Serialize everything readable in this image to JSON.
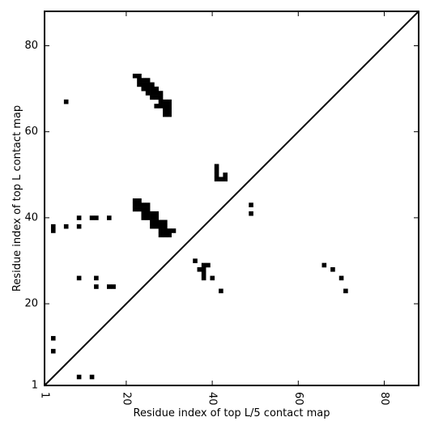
{
  "chart_data": {
    "type": "heatmap",
    "title": "",
    "xlabel": "Residue index of top L/5 contact map",
    "ylabel": "Residue index of top L contact map",
    "xlim": [
      1,
      88
    ],
    "ylim": [
      1,
      88
    ],
    "x_ticks": [
      1,
      20,
      40,
      60,
      80
    ],
    "y_ticks": [
      1,
      20,
      40,
      60,
      80
    ],
    "x_tick_labels": [
      "1",
      "20",
      "40",
      "60",
      "80"
    ],
    "y_tick_labels": [
      "1",
      "20",
      "40",
      "60",
      "80"
    ],
    "x_tick_rotation_deg": -90,
    "grid": false,
    "diagonal_line": true,
    "colors": {
      "contact": "#000000",
      "background": "#ffffff"
    },
    "points": [
      [
        22,
        73
      ],
      [
        23,
        73
      ],
      [
        23,
        72
      ],
      [
        24,
        72
      ],
      [
        25,
        72
      ],
      [
        23,
        71
      ],
      [
        24,
        71
      ],
      [
        25,
        71
      ],
      [
        26,
        71
      ],
      [
        24,
        70
      ],
      [
        25,
        70
      ],
      [
        26,
        70
      ],
      [
        27,
        70
      ],
      [
        25,
        69
      ],
      [
        26,
        69
      ],
      [
        27,
        69
      ],
      [
        28,
        69
      ],
      [
        26,
        68
      ],
      [
        27,
        68
      ],
      [
        28,
        68
      ],
      [
        28,
        67
      ],
      [
        29,
        67
      ],
      [
        30,
        67
      ],
      [
        27,
        66
      ],
      [
        28,
        66
      ],
      [
        29,
        66
      ],
      [
        30,
        66
      ],
      [
        29,
        65
      ],
      [
        30,
        65
      ],
      [
        29,
        64
      ],
      [
        30,
        64
      ],
      [
        6,
        67
      ],
      [
        41,
        52
      ],
      [
        41,
        51
      ],
      [
        41,
        50
      ],
      [
        43,
        50
      ],
      [
        41,
        49
      ],
      [
        42,
        49
      ],
      [
        43,
        49
      ],
      [
        22,
        44
      ],
      [
        23,
        44
      ],
      [
        22,
        43
      ],
      [
        23,
        43
      ],
      [
        24,
        43
      ],
      [
        25,
        43
      ],
      [
        22,
        42
      ],
      [
        23,
        42
      ],
      [
        24,
        42
      ],
      [
        25,
        42
      ],
      [
        24,
        41
      ],
      [
        25,
        41
      ],
      [
        26,
        41
      ],
      [
        27,
        41
      ],
      [
        24,
        40
      ],
      [
        25,
        40
      ],
      [
        26,
        40
      ],
      [
        27,
        40
      ],
      [
        26,
        39
      ],
      [
        27,
        39
      ],
      [
        28,
        39
      ],
      [
        29,
        39
      ],
      [
        26,
        38
      ],
      [
        27,
        38
      ],
      [
        28,
        38
      ],
      [
        29,
        38
      ],
      [
        28,
        37
      ],
      [
        29,
        37
      ],
      [
        30,
        37
      ],
      [
        31,
        37
      ],
      [
        28,
        36
      ],
      [
        29,
        36
      ],
      [
        30,
        36
      ],
      [
        9,
        40
      ],
      [
        12,
        40
      ],
      [
        13,
        40
      ],
      [
        16,
        40
      ],
      [
        3,
        38
      ],
      [
        6,
        38
      ],
      [
        9,
        38
      ],
      [
        3,
        37
      ],
      [
        49,
        43
      ],
      [
        49,
        41
      ],
      [
        36,
        30
      ],
      [
        38,
        29
      ],
      [
        39,
        29
      ],
      [
        37,
        28
      ],
      [
        38,
        28
      ],
      [
        38,
        27
      ],
      [
        38,
        26
      ],
      [
        40,
        26
      ],
      [
        42,
        23
      ],
      [
        9,
        26
      ],
      [
        13,
        26
      ],
      [
        13,
        24
      ],
      [
        16,
        24
      ],
      [
        17,
        24
      ],
      [
        66,
        29
      ],
      [
        68,
        28
      ],
      [
        70,
        26
      ],
      [
        71,
        23
      ],
      [
        3,
        12
      ],
      [
        3,
        9
      ],
      [
        9,
        3
      ],
      [
        12,
        3
      ]
    ]
  }
}
